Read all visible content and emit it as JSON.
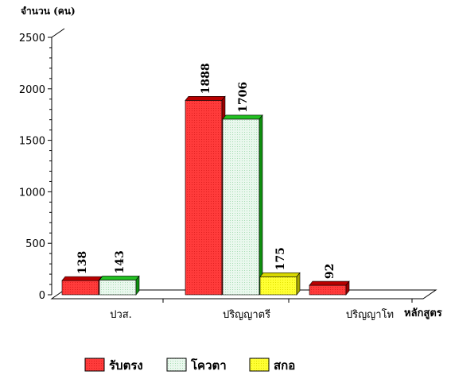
{
  "chart_data": {
    "type": "bar",
    "ylabel": "จำนวน (คน)",
    "xlabel": "หลักสูตร",
    "ylim": [
      0,
      2500
    ],
    "yticks": [
      0,
      500,
      1000,
      1500,
      2000,
      2500
    ],
    "categories": [
      "ปวส.",
      "ปริญญาตรี",
      "ปริญญาโท"
    ],
    "series": [
      {
        "name": "รับตรง",
        "values": [
          138,
          1888,
          92
        ],
        "color": "#ff3b3b",
        "top_color": "#b80000",
        "side_color": "#9a0000"
      },
      {
        "name": "โควตา",
        "values": [
          143,
          1706,
          null
        ],
        "color": "#e6f7ea",
        "top_color": "#22c022",
        "side_color": "#0f8f0f"
      },
      {
        "name": "สกอ",
        "values": [
          null,
          175,
          null
        ],
        "color": "#ffff33",
        "top_color": "#d8d800",
        "side_color": "#a8a800"
      }
    ],
    "grid": false,
    "legend_position": "bottom"
  }
}
